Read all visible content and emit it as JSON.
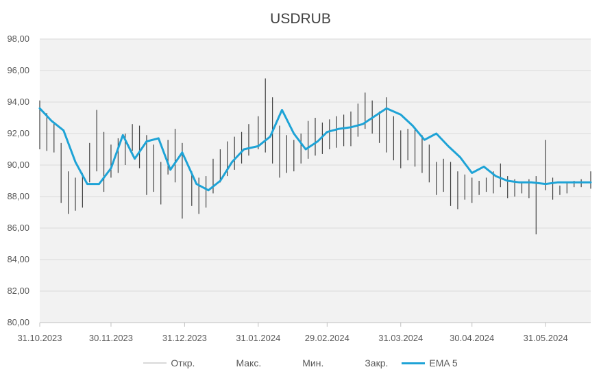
{
  "chart_data": {
    "type": "line",
    "title": "USDRUB",
    "ylim": [
      80,
      98
    ],
    "y_ticks": [
      "80,00",
      "82,00",
      "84,00",
      "86,00",
      "88,00",
      "90,00",
      "92,00",
      "94,00",
      "96,00",
      "98,00"
    ],
    "x_ticks": [
      "31.10.2023",
      "30.11.2023",
      "31.12.2023",
      "31.01.2024",
      "29.02.2024",
      "31.03.2024",
      "30.04.2024",
      "31.05.2024"
    ],
    "x_range": [
      "2023-10-31",
      "2024-06-19"
    ],
    "grid": true,
    "legend_position": "bottom",
    "legend": [
      "Откр.",
      "Макс.",
      "Мин.",
      "Закр.",
      "EMA 5"
    ],
    "colors": {
      "ohlc": "#404040",
      "ema": "#1ea3d6",
      "plot_bg": "#f2f2f2",
      "grid": "#d9d9d9",
      "open_legend": "#d9d9d9"
    },
    "series": [
      {
        "name": "EMA 5",
        "x": [
          "2023-10-31",
          "2023-11-05",
          "2023-11-10",
          "2023-11-15",
          "2023-11-20",
          "2023-11-25",
          "2023-11-30",
          "2023-12-05",
          "2023-12-10",
          "2023-12-15",
          "2023-12-20",
          "2023-12-25",
          "2023-12-30",
          "2024-01-05",
          "2024-01-10",
          "2024-01-15",
          "2024-01-20",
          "2024-01-25",
          "2024-01-31",
          "2024-02-05",
          "2024-02-10",
          "2024-02-15",
          "2024-02-20",
          "2024-02-25",
          "2024-02-29",
          "2024-03-05",
          "2024-03-10",
          "2024-03-15",
          "2024-03-20",
          "2024-03-25",
          "2024-03-31",
          "2024-04-05",
          "2024-04-10",
          "2024-04-15",
          "2024-04-20",
          "2024-04-25",
          "2024-04-30",
          "2024-05-05",
          "2024-05-10",
          "2024-05-15",
          "2024-05-20",
          "2024-05-25",
          "2024-05-31",
          "2024-06-05",
          "2024-06-10",
          "2024-06-15",
          "2024-06-19"
        ],
        "values": [
          93.6,
          92.8,
          92.2,
          90.2,
          88.8,
          88.8,
          89.8,
          91.9,
          90.4,
          91.5,
          91.7,
          89.7,
          90.8,
          88.8,
          88.4,
          89.0,
          90.2,
          91.0,
          91.2,
          91.8,
          93.5,
          92.0,
          91.0,
          91.5,
          92.1,
          92.3,
          92.4,
          92.6,
          93.1,
          93.6,
          93.2,
          92.5,
          91.6,
          92.0,
          91.2,
          90.5,
          89.5,
          89.9,
          89.3,
          89.0,
          88.9,
          88.9,
          88.8,
          88.9,
          88.9,
          88.9,
          88.9
        ]
      },
      {
        "name": "Макс.",
        "x": [
          "2023-10-31",
          "2023-11-03",
          "2023-11-06",
          "2023-11-09",
          "2023-11-12",
          "2023-11-15",
          "2023-11-18",
          "2023-11-21",
          "2023-11-24",
          "2023-11-27",
          "2023-11-30",
          "2023-12-03",
          "2023-12-06",
          "2023-12-09",
          "2023-12-12",
          "2023-12-15",
          "2023-12-18",
          "2023-12-21",
          "2023-12-24",
          "2023-12-27",
          "2023-12-30",
          "2024-01-03",
          "2024-01-06",
          "2024-01-09",
          "2024-01-12",
          "2024-01-15",
          "2024-01-18",
          "2024-01-21",
          "2024-01-24",
          "2024-01-27",
          "2024-01-31",
          "2024-02-03",
          "2024-02-06",
          "2024-02-09",
          "2024-02-12",
          "2024-02-15",
          "2024-02-18",
          "2024-02-21",
          "2024-02-24",
          "2024-02-27",
          "2024-03-01",
          "2024-03-04",
          "2024-03-07",
          "2024-03-10",
          "2024-03-13",
          "2024-03-16",
          "2024-03-19",
          "2024-03-22",
          "2024-03-25",
          "2024-03-28",
          "2024-03-31",
          "2024-04-03",
          "2024-04-06",
          "2024-04-09",
          "2024-04-12",
          "2024-04-15",
          "2024-04-18",
          "2024-04-21",
          "2024-04-24",
          "2024-04-27",
          "2024-04-30",
          "2024-05-03",
          "2024-05-06",
          "2024-05-09",
          "2024-05-12",
          "2024-05-15",
          "2024-05-18",
          "2024-05-21",
          "2024-05-24",
          "2024-05-27",
          "2024-05-31",
          "2024-06-03",
          "2024-06-06",
          "2024-06-09",
          "2024-06-12",
          "2024-06-15",
          "2024-06-19"
        ],
        "values": [
          94.1,
          93.3,
          92.7,
          91.4,
          89.6,
          89.2,
          89.5,
          91.4,
          93.5,
          92.1,
          91.3,
          91.7,
          92.0,
          92.6,
          92.5,
          91.9,
          91.3,
          90.2,
          91.6,
          92.3,
          91.4,
          89.6,
          89.2,
          89.3,
          90.4,
          91.0,
          91.5,
          91.8,
          92.1,
          92.6,
          93.1,
          95.5,
          94.3,
          92.5,
          91.9,
          91.6,
          92.0,
          92.8,
          93.0,
          92.7,
          92.9,
          93.1,
          93.2,
          93.4,
          93.9,
          94.6,
          94.1,
          93.4,
          94.3,
          93.1,
          92.2,
          92.3,
          92.4,
          91.9,
          91.3,
          90.2,
          90.4,
          90.2,
          89.6,
          89.4,
          89.2,
          89.0,
          89.2,
          89.6,
          90.1,
          89.3,
          89.1,
          88.9,
          89.1,
          89.3,
          91.6,
          89.2,
          88.7,
          88.9,
          89.0,
          89.1,
          89.6
        ]
      },
      {
        "name": "Мин.",
        "x": [
          "2023-10-31",
          "2023-11-03",
          "2023-11-06",
          "2023-11-09",
          "2023-11-12",
          "2023-11-15",
          "2023-11-18",
          "2023-11-21",
          "2023-11-24",
          "2023-11-27",
          "2023-11-30",
          "2023-12-03",
          "2023-12-06",
          "2023-12-09",
          "2023-12-12",
          "2023-12-15",
          "2023-12-18",
          "2023-12-21",
          "2023-12-24",
          "2023-12-27",
          "2023-12-30",
          "2024-01-03",
          "2024-01-06",
          "2024-01-09",
          "2024-01-12",
          "2024-01-15",
          "2024-01-18",
          "2024-01-21",
          "2024-01-24",
          "2024-01-27",
          "2024-01-31",
          "2024-02-03",
          "2024-02-06",
          "2024-02-09",
          "2024-02-12",
          "2024-02-15",
          "2024-02-18",
          "2024-02-21",
          "2024-02-24",
          "2024-02-27",
          "2024-03-01",
          "2024-03-04",
          "2024-03-07",
          "2024-03-10",
          "2024-03-13",
          "2024-03-16",
          "2024-03-19",
          "2024-03-22",
          "2024-03-25",
          "2024-03-28",
          "2024-03-31",
          "2024-04-03",
          "2024-04-06",
          "2024-04-09",
          "2024-04-12",
          "2024-04-15",
          "2024-04-18",
          "2024-04-21",
          "2024-04-24",
          "2024-04-27",
          "2024-04-30",
          "2024-05-03",
          "2024-05-06",
          "2024-05-09",
          "2024-05-12",
          "2024-05-15",
          "2024-05-18",
          "2024-05-21",
          "2024-05-24",
          "2024-05-27",
          "2024-05-31",
          "2024-06-03",
          "2024-06-06",
          "2024-06-09",
          "2024-06-12",
          "2024-06-15",
          "2024-06-19"
        ],
        "values": [
          91.0,
          90.9,
          90.8,
          87.6,
          86.9,
          87.1,
          87.3,
          88.9,
          89.6,
          88.3,
          89.2,
          89.5,
          90.0,
          90.9,
          89.8,
          88.1,
          88.3,
          87.5,
          89.4,
          88.9,
          86.6,
          87.4,
          86.9,
          87.3,
          88.2,
          88.9,
          89.3,
          89.7,
          90.1,
          90.6,
          91.0,
          90.8,
          90.1,
          89.2,
          89.5,
          89.6,
          90.1,
          90.4,
          90.6,
          90.7,
          91.0,
          91.1,
          91.2,
          91.2,
          91.8,
          92.3,
          92.0,
          91.4,
          90.8,
          90.3,
          89.8,
          90.3,
          89.9,
          89.5,
          88.9,
          88.1,
          88.3,
          87.4,
          87.2,
          87.8,
          87.6,
          88.1,
          88.3,
          88.2,
          88.6,
          87.9,
          88.0,
          88.2,
          87.9,
          85.6,
          88.4,
          87.8,
          88.1,
          88.2,
          88.6,
          88.6,
          88.5
        ]
      }
    ]
  }
}
